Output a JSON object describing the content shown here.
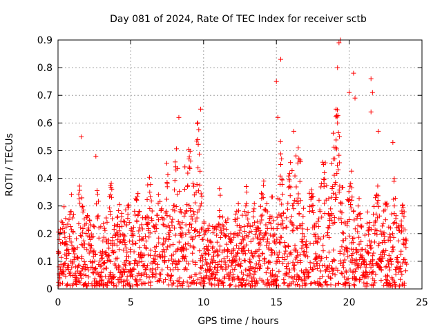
{
  "chart_data": {
    "type": "scatter",
    "title": "Day 081 of 2024, Rate Of TEC Index for receiver sctb",
    "xlabel": "GPS time / hours",
    "ylabel": "ROTI / TECUs",
    "xlim": [
      0,
      25
    ],
    "ylim": [
      0,
      0.9
    ],
    "x_ticks": [
      "0",
      "5",
      "10",
      "15",
      "20",
      "25"
    ],
    "y_ticks": [
      "0",
      "0.1",
      "0.2",
      "0.3",
      "0.4",
      "0.5",
      "0.6",
      "0.7",
      "0.8",
      "0.9"
    ],
    "grid": true,
    "marker": "+",
    "color": "#ff0000",
    "series": [
      {
        "name": "ROTI",
        "note": "dense scatter of '+' markers sampled approximately; baseline band roughly 0.02-0.30 TECUs over 0-24 h",
        "x": [
          0.1,
          0.3,
          0.6,
          0.9,
          1.2,
          1.5,
          1.8,
          2.1,
          2.4,
          2.7,
          3.0,
          3.3,
          3.6,
          3.9,
          4.2,
          4.5,
          4.8,
          5.1,
          5.4,
          5.7,
          6.0,
          6.3,
          6.6,
          6.9,
          7.2,
          7.5,
          7.8,
          8.1,
          8.4,
          8.7,
          9.0,
          9.3,
          9.6,
          9.9,
          10.2,
          10.5,
          10.8,
          11.1,
          11.4,
          11.7,
          12.0,
          12.3,
          12.6,
          12.9,
          13.2,
          13.5,
          13.8,
          14.1,
          14.4,
          14.7,
          15.0,
          15.3,
          15.6,
          15.9,
          16.2,
          16.5,
          16.8,
          17.1,
          17.4,
          17.7,
          18.0,
          18.3,
          18.6,
          18.9,
          19.2,
          19.5,
          19.8,
          20.1,
          20.4,
          20.7,
          21.0,
          21.3,
          21.6,
          21.9,
          22.2,
          22.5,
          22.8,
          23.1,
          23.4,
          23.7,
          23.9
        ],
        "y": [
          0.05,
          0.24,
          0.12,
          0.28,
          0.08,
          0.31,
          0.15,
          0.22,
          0.06,
          0.26,
          0.11,
          0.18,
          0.34,
          0.09,
          0.21,
          0.14,
          0.27,
          0.07,
          0.32,
          0.13,
          0.19,
          0.35,
          0.1,
          0.25,
          0.16,
          0.38,
          0.12,
          0.43,
          0.2,
          0.36,
          0.47,
          0.28,
          0.54,
          0.22,
          0.09,
          0.17,
          0.04,
          0.26,
          0.11,
          0.19,
          0.07,
          0.23,
          0.14,
          0.3,
          0.08,
          0.24,
          0.12,
          0.33,
          0.18,
          0.26,
          0.1,
          0.45,
          0.05,
          0.37,
          0.29,
          0.51,
          0.2,
          0.15,
          0.33,
          0.11,
          0.28,
          0.42,
          0.22,
          0.47,
          0.6,
          0.31,
          0.14,
          0.38,
          0.09,
          0.27,
          0.05,
          0.21,
          0.12,
          0.34,
          0.07,
          0.25,
          0.1,
          0.3,
          0.06,
          0.22,
          0.15
        ]
      }
    ],
    "annotations": [
      {
        "x": 1.6,
        "y": 0.55
      },
      {
        "x": 2.6,
        "y": 0.48
      },
      {
        "x": 8.3,
        "y": 0.62
      },
      {
        "x": 9.8,
        "y": 0.65
      },
      {
        "x": 15.0,
        "y": 0.75
      },
      {
        "x": 15.1,
        "y": 0.62
      },
      {
        "x": 15.3,
        "y": 0.83
      },
      {
        "x": 16.2,
        "y": 0.57
      },
      {
        "x": 19.1,
        "y": 0.65
      },
      {
        "x": 19.2,
        "y": 0.8
      },
      {
        "x": 19.3,
        "y": 0.89
      },
      {
        "x": 19.4,
        "y": 0.9
      },
      {
        "x": 20.0,
        "y": 0.71
      },
      {
        "x": 20.3,
        "y": 0.78
      },
      {
        "x": 20.4,
        "y": 0.69
      },
      {
        "x": 21.5,
        "y": 0.76
      },
      {
        "x": 21.6,
        "y": 0.71
      },
      {
        "x": 21.5,
        "y": 0.64
      },
      {
        "x": 22.0,
        "y": 0.57
      },
      {
        "x": 23.0,
        "y": 0.53
      }
    ]
  }
}
